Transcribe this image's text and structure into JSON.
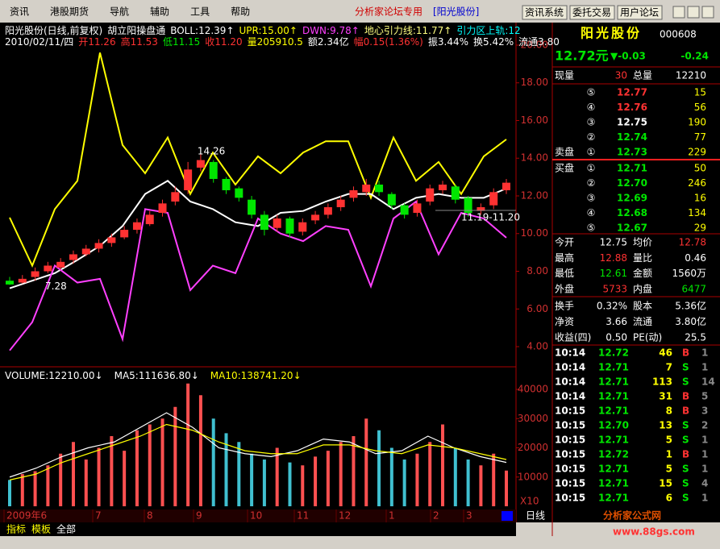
{
  "window": {
    "menus": [
      "资讯",
      "港股期货",
      "导航",
      "辅助",
      "工具",
      "帮助"
    ],
    "forum_label": "分析家论坛专用",
    "stock_tag": "[阳光股份]",
    "buttons": [
      "资讯系统",
      "委托交易",
      "用户论坛"
    ],
    "tabs": [
      "指标",
      "模板",
      "全部"
    ],
    "period": "日线",
    "watermark": "分析家公式网",
    "watermark_url": "www.88gs.com"
  },
  "chart_data": [
    {
      "type": "candlestick",
      "header": [
        [
          {
            "text": "阳光股份(日线,前复权)",
            "color": "#ffffff"
          },
          {
            "text": "胡立阳操盘通",
            "color": "#ffffff"
          },
          {
            "text": "BOLL:12.39↑",
            "color": "#ffffff"
          },
          {
            "text": "UPR:15.00↑",
            "color": "#ffff00"
          },
          {
            "text": "DWN:9.78↑",
            "color": "#ff40ff"
          },
          {
            "text": "地心引力线:11.77↑",
            "color": "#ffff80"
          },
          {
            "text": "引力区上轨:12",
            "color": "#00ffff"
          }
        ],
        [
          {
            "text": "2010/02/11/四",
            "color": "#ffffff"
          },
          {
            "text": "开11.26",
            "color": "#ff3232"
          },
          {
            "text": "高11.53",
            "color": "#ff3232"
          },
          {
            "text": "低11.15",
            "color": "#00e600"
          },
          {
            "text": "收11.20",
            "color": "#ff3232"
          },
          {
            "text": "量205910.5",
            "color": "#ffff00"
          },
          {
            "text": "额2.34亿",
            "color": "#ffffff"
          },
          {
            "text": "幅0.15(1.36%)",
            "color": "#ff3232"
          },
          {
            "text": "振3.44%",
            "color": "#ffffff"
          },
          {
            "text": "换5.42%",
            "color": "#ffffff"
          },
          {
            "text": "流通3.80",
            "color": "#ffffff"
          }
        ]
      ],
      "open": [
        7.5,
        7.4,
        7.7,
        8.0,
        8.2,
        8.6,
        8.9,
        9.2,
        9.5,
        9.8,
        10.2,
        10.5,
        11.1,
        11.7,
        12.3,
        13.5,
        13.8,
        12.9,
        12.4,
        11.8,
        11.0,
        10.3,
        10.8,
        10.1,
        10.7,
        11.0,
        11.4,
        11.9,
        12.2,
        12.6,
        12.1,
        11.5,
        11.1,
        11.7,
        12.3,
        12.5,
        11.9,
        11.2,
        11.5,
        12.3
      ],
      "high": [
        7.7,
        7.8,
        8.2,
        8.5,
        8.7,
        9.1,
        9.4,
        9.7,
        10.0,
        10.4,
        10.8,
        11.2,
        11.8,
        12.5,
        13.8,
        14.26,
        13.9,
        13.0,
        12.5,
        12.0,
        11.2,
        11.0,
        10.9,
        10.8,
        11.2,
        11.6,
        12.0,
        12.5,
        12.9,
        12.8,
        12.2,
        11.6,
        11.8,
        12.6,
        12.8,
        12.6,
        12.0,
        11.6,
        12.4,
        12.9
      ],
      "low": [
        7.28,
        7.35,
        7.5,
        7.9,
        8.1,
        8.4,
        8.8,
        9.0,
        9.3,
        9.7,
        10.0,
        10.4,
        10.9,
        11.5,
        12.1,
        13.3,
        12.7,
        12.1,
        11.7,
        10.8,
        9.9,
        10.1,
        9.8,
        9.9,
        10.5,
        10.8,
        11.2,
        11.7,
        12.0,
        12.0,
        11.3,
        10.8,
        10.9,
        11.5,
        12.1,
        11.6,
        10.9,
        11.0,
        11.3,
        12.1
      ],
      "close": [
        7.3,
        7.6,
        8.0,
        8.3,
        8.5,
        8.9,
        9.2,
        9.5,
        9.8,
        10.2,
        10.6,
        11.0,
        11.6,
        12.2,
        13.4,
        13.9,
        12.9,
        12.3,
        11.9,
        11.0,
        10.2,
        10.8,
        10.0,
        10.6,
        11.0,
        11.4,
        11.8,
        12.3,
        12.6,
        12.2,
        11.5,
        11.0,
        11.6,
        12.4,
        12.6,
        11.8,
        11.1,
        11.4,
        12.2,
        12.7
      ],
      "up_color": "#ff3232",
      "down_color": "#00e600",
      "series": [
        {
          "color": "#ffff00",
          "values": [
            10.85,
            8.3,
            11.3,
            12.8,
            19.6,
            14.7,
            13.2,
            15.1,
            12.1,
            14.3,
            12.6,
            14.1,
            13.2,
            14.3,
            14.9,
            14.9,
            11.9,
            15.1,
            12.8,
            13.8,
            12.1,
            14.1,
            15.0
          ]
        },
        {
          "color": "#ffffff",
          "values": [
            7.1,
            7.5,
            7.9,
            8.6,
            9.35,
            10.4,
            12.1,
            12.8,
            11.7,
            11.3,
            10.6,
            10.4,
            11.1,
            11.2,
            11.7,
            12.1,
            12.1,
            11.3,
            11.9,
            12.1,
            11.9,
            11.9,
            12.39
          ]
        },
        {
          "color": "#ff40ff",
          "values": [
            3.8,
            5.3,
            8.3,
            7.4,
            7.6,
            4.4,
            11.3,
            11.1,
            7.0,
            8.3,
            7.9,
            10.8,
            10.0,
            9.6,
            10.4,
            10.2,
            7.2,
            10.8,
            11.7,
            8.9,
            11.1,
            10.8,
            9.78
          ]
        }
      ],
      "annotations": [
        "14.26",
        "7.28",
        "11.19-11.20"
      ],
      "x_labels": [
        "2009年6",
        "7",
        "8",
        "9",
        "10",
        "11",
        "12",
        "1",
        "2",
        "3"
      ],
      "ylim": [
        3.5,
        21
      ],
      "yticks": [
        {
          "value": 4,
          "label": "4.00"
        },
        {
          "value": 6,
          "label": "6.00"
        },
        {
          "value": 8,
          "label": "8.00"
        },
        {
          "value": 10,
          "label": "10.00"
        },
        {
          "value": 12,
          "label": "12.00"
        },
        {
          "value": 14,
          "label": "14.00"
        },
        {
          "value": 16,
          "label": "16.00"
        },
        {
          "value": 18,
          "label": "18.00"
        },
        {
          "value": 20,
          "label": "20.00"
        }
      ]
    },
    {
      "type": "bar",
      "header": [
        {
          "text": "VOLUME:12210.00↓",
          "color": "#ffffff"
        },
        {
          "text": "MA5:111636.80↓",
          "color": "#ffffff"
        },
        {
          "text": "MA10:138741.20↓",
          "color": "#ffff00"
        }
      ],
      "values": [
        9000,
        11000,
        12000,
        14000,
        18000,
        22000,
        16000,
        20000,
        24000,
        19000,
        26000,
        28000,
        30000,
        34000,
        42000,
        38000,
        30000,
        25000,
        22000,
        18000,
        16000,
        20000,
        15000,
        14000,
        17000,
        19000,
        22000,
        24000,
        30000,
        26000,
        20000,
        16000,
        18000,
        22000,
        28000,
        20000,
        16000,
        14000,
        18000,
        12210
      ],
      "series": [
        {
          "color": "#ffffff",
          "values": [
            10000,
            13000,
            17000,
            20000,
            22000,
            27000,
            32000,
            27000,
            20000,
            18000,
            17000,
            19000,
            23000,
            22000,
            18000,
            19000,
            24000,
            20000,
            17000,
            15000
          ]
        },
        {
          "color": "#ffff00",
          "values": [
            9000,
            11000,
            15000,
            18000,
            21000,
            24000,
            28000,
            26000,
            22000,
            19000,
            18000,
            18000,
            21000,
            21000,
            19000,
            18000,
            21000,
            20000,
            18000,
            16000
          ]
        }
      ],
      "scale_label": "X10",
      "ylim": [
        0,
        44000
      ],
      "yticks": [
        10000,
        20000,
        30000,
        40000
      ]
    }
  ],
  "quote": {
    "name": "阳光股份",
    "code": "000608",
    "price": "12.72元",
    "change": "▼-0.03",
    "change2": "-0.24",
    "vol_now_label": "现量",
    "vol_now": "30",
    "vol_total_label": "总量",
    "vol_total": "12210",
    "sell_label": "卖盘",
    "buy_label": "买盘",
    "asks": [
      {
        "label": "⑤",
        "price": "12.77",
        "volume": "15",
        "color": "#ff3232"
      },
      {
        "label": "④",
        "price": "12.76",
        "volume": "56",
        "color": "#ff3232"
      },
      {
        "label": "③",
        "price": "12.75",
        "volume": "190",
        "color": "#ffffff"
      },
      {
        "label": "②",
        "price": "12.74",
        "volume": "77",
        "color": "#00e600"
      },
      {
        "label": "①",
        "price": "12.73",
        "volume": "229",
        "color": "#00e600"
      }
    ],
    "bids": [
      {
        "label": "①",
        "price": "12.71",
        "volume": "50",
        "color": "#00e600"
      },
      {
        "label": "②",
        "price": "12.70",
        "volume": "246",
        "color": "#00e600"
      },
      {
        "label": "③",
        "price": "12.69",
        "volume": "16",
        "color": "#00e600"
      },
      {
        "label": "④",
        "price": "12.68",
        "volume": "134",
        "color": "#00e600"
      },
      {
        "label": "⑤",
        "price": "12.67",
        "volume": "29",
        "color": "#00e600"
      }
    ],
    "stats": [
      [
        "今开",
        "12.75",
        "均价",
        "12.78"
      ],
      [
        "最高",
        "12.88",
        "量比",
        "0.46"
      ],
      [
        "最低",
        "12.61",
        "金额",
        "1560万"
      ],
      [
        "外盘",
        "5733",
        "内盘",
        "6477"
      ],
      [
        "换手",
        "0.32%",
        "股本",
        "5.36亿"
      ],
      [
        "净资",
        "3.66",
        "流通",
        "3.80亿"
      ],
      [
        "收益(四)",
        "0.50",
        "PE(动)",
        "25.5"
      ]
    ],
    "stat_colors": [
      [
        "#ffffff",
        "#ff3232"
      ],
      [
        "#ff3232",
        "#ffffff"
      ],
      [
        "#00e600",
        "#ffffff"
      ],
      [
        "#ff3232",
        "#00e600"
      ],
      [
        "#ffffff",
        "#ffffff"
      ],
      [
        "#ffffff",
        "#ffffff"
      ],
      [
        "#ffffff",
        "#ffffff"
      ]
    ],
    "trades": [
      [
        "10:14",
        "12.72",
        "46",
        "B",
        "1"
      ],
      [
        "10:14",
        "12.71",
        "7",
        "S",
        "1"
      ],
      [
        "10:14",
        "12.71",
        "113",
        "S",
        "14"
      ],
      [
        "10:14",
        "12.71",
        "31",
        "B",
        "5"
      ],
      [
        "10:15",
        "12.71",
        "8",
        "B",
        "3"
      ],
      [
        "10:15",
        "12.70",
        "13",
        "S",
        "2"
      ],
      [
        "10:15",
        "12.71",
        "5",
        "S",
        "1"
      ],
      [
        "10:15",
        "12.72",
        "1",
        "B",
        "1"
      ],
      [
        "10:15",
        "12.71",
        "5",
        "S",
        "1"
      ],
      [
        "10:15",
        "12.71",
        "15",
        "S",
        "4"
      ],
      [
        "10:15",
        "12.71",
        "6",
        "S",
        "1"
      ]
    ]
  }
}
